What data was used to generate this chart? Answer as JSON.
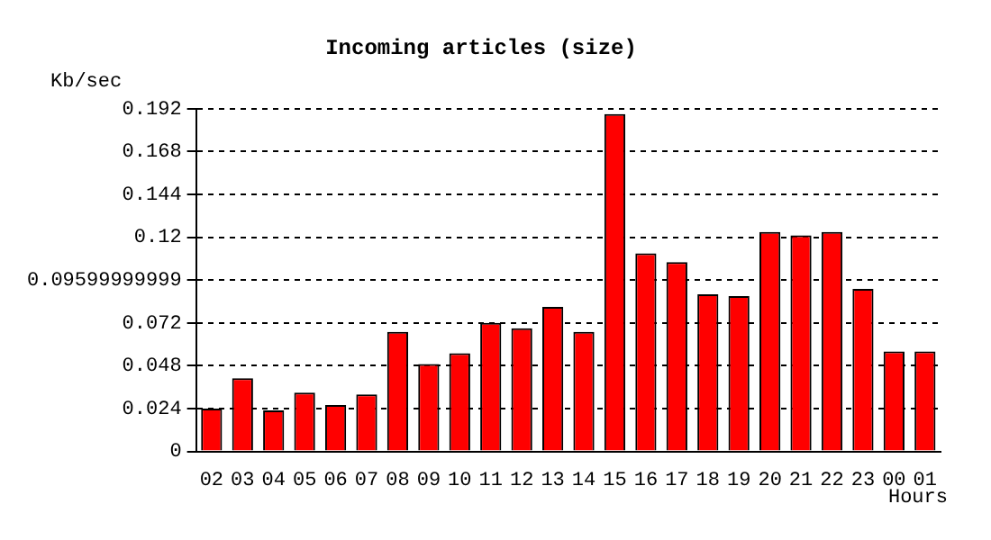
{
  "chart_data": {
    "type": "bar",
    "title": "Incoming articles (size)",
    "xlabel": "Hours",
    "ylabel": "Kb/sec",
    "categories": [
      "02",
      "03",
      "04",
      "05",
      "06",
      "07",
      "08",
      "09",
      "10",
      "11",
      "12",
      "13",
      "14",
      "15",
      "16",
      "17",
      "18",
      "19",
      "20",
      "21",
      "22",
      "23",
      "00",
      "01"
    ],
    "values": [
      0.024,
      0.041,
      0.023,
      0.033,
      0.026,
      0.032,
      0.067,
      0.049,
      0.055,
      0.072,
      0.069,
      0.081,
      0.067,
      0.189,
      0.111,
      0.106,
      0.088,
      0.087,
      0.123,
      0.121,
      0.123,
      0.091,
      0.056,
      0.056
    ],
    "color": "#ff0000",
    "ylim": [
      0,
      0.192
    ],
    "yticks": [
      0,
      0.024,
      0.048,
      0.072,
      0.09599999999,
      0.12,
      0.144,
      0.168,
      0.192
    ],
    "grid": "y",
    "legend": false
  }
}
